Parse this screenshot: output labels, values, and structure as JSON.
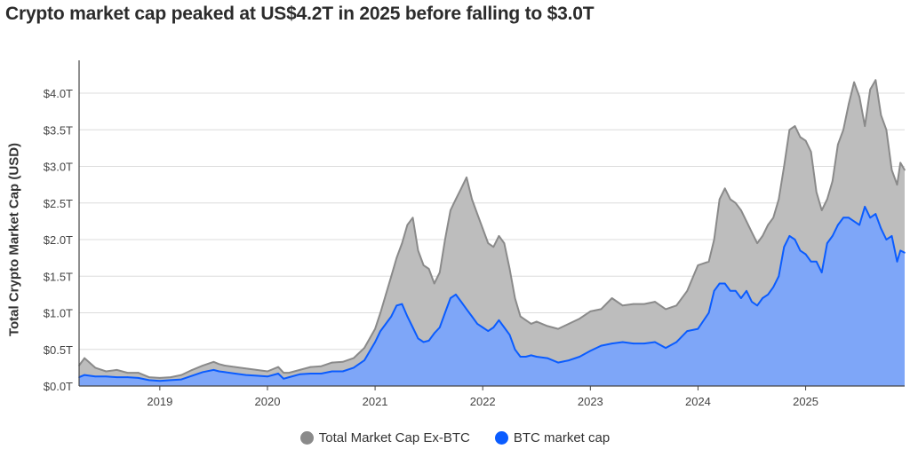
{
  "title": "Crypto market cap peaked at US$4.2T in 2025 before falling to $3.0T",
  "chart_data": {
    "type": "area",
    "title": "Crypto market cap peaked at US$4.2T in 2025 before falling to $3.0T",
    "xlabel": "",
    "ylabel": "Total Crypto Market Cap (USD)",
    "ylim": [
      0,
      4.4
    ],
    "xlim": [
      2018.25,
      2025.92
    ],
    "y_ticks": [
      {
        "value": 0,
        "label": "$0.0T"
      },
      {
        "value": 0.5,
        "label": "$0.5T"
      },
      {
        "value": 1.0,
        "label": "$1.0T"
      },
      {
        "value": 1.5,
        "label": "$1.5T"
      },
      {
        "value": 2.0,
        "label": "$2.0T"
      },
      {
        "value": 2.5,
        "label": "$2.5T"
      },
      {
        "value": 3.0,
        "label": "$3.0T"
      },
      {
        "value": 3.5,
        "label": "$3.5T"
      },
      {
        "value": 4.0,
        "label": "$4.0T"
      }
    ],
    "x_ticks": [
      {
        "value": 2019,
        "label": "2019"
      },
      {
        "value": 2020,
        "label": "2020"
      },
      {
        "value": 2021,
        "label": "2021"
      },
      {
        "value": 2022,
        "label": "2022"
      },
      {
        "value": 2023,
        "label": "2023"
      },
      {
        "value": 2024,
        "label": "2024"
      },
      {
        "value": 2025,
        "label": "2025"
      }
    ],
    "colors": {
      "total": "#8a8a8a",
      "total_fill": "#bdbdbd",
      "btc": "#0a5cff",
      "btc_fill": "#7ea6f8",
      "grid": "#dcdcdc",
      "axis": "#444444"
    },
    "series": [
      {
        "name": "Total Market Cap Ex-BTC",
        "role": "total",
        "x": [
          2018.25,
          2018.3,
          2018.4,
          2018.5,
          2018.6,
          2018.7,
          2018.8,
          2018.9,
          2019.0,
          2019.1,
          2019.2,
          2019.3,
          2019.4,
          2019.5,
          2019.55,
          2019.6,
          2019.7,
          2019.8,
          2019.9,
          2020.0,
          2020.1,
          2020.15,
          2020.2,
          2020.3,
          2020.4,
          2020.5,
          2020.6,
          2020.7,
          2020.8,
          2020.9,
          2021.0,
          2021.05,
          2021.1,
          2021.15,
          2021.2,
          2021.25,
          2021.3,
          2021.35,
          2021.4,
          2021.45,
          2021.5,
          2021.55,
          2021.6,
          2021.65,
          2021.7,
          2021.75,
          2021.8,
          2021.85,
          2021.9,
          2021.95,
          2022.0,
          2022.05,
          2022.1,
          2022.15,
          2022.2,
          2022.25,
          2022.3,
          2022.35,
          2022.4,
          2022.45,
          2022.5,
          2022.6,
          2022.7,
          2022.8,
          2022.9,
          2023.0,
          2023.1,
          2023.2,
          2023.3,
          2023.4,
          2023.5,
          2023.6,
          2023.7,
          2023.8,
          2023.9,
          2024.0,
          2024.1,
          2024.15,
          2024.2,
          2024.25,
          2024.3,
          2024.35,
          2024.4,
          2024.45,
          2024.5,
          2024.55,
          2024.6,
          2024.65,
          2024.7,
          2024.75,
          2024.8,
          2024.85,
          2024.9,
          2024.95,
          2025.0,
          2025.05,
          2025.1,
          2025.15,
          2025.2,
          2025.25,
          2025.3,
          2025.35,
          2025.4,
          2025.45,
          2025.5,
          2025.55,
          2025.6,
          2025.65,
          2025.7,
          2025.75,
          2025.8,
          2025.85,
          2025.88,
          2025.92
        ],
        "values": [
          0.28,
          0.38,
          0.25,
          0.2,
          0.22,
          0.18,
          0.18,
          0.12,
          0.11,
          0.12,
          0.15,
          0.22,
          0.28,
          0.33,
          0.3,
          0.28,
          0.26,
          0.24,
          0.22,
          0.2,
          0.26,
          0.18,
          0.18,
          0.22,
          0.26,
          0.27,
          0.32,
          0.33,
          0.38,
          0.52,
          0.78,
          1.0,
          1.25,
          1.5,
          1.75,
          1.95,
          2.2,
          2.3,
          1.85,
          1.65,
          1.6,
          1.4,
          1.55,
          2.0,
          2.4,
          2.55,
          2.7,
          2.85,
          2.55,
          2.35,
          2.15,
          1.95,
          1.9,
          2.05,
          1.95,
          1.6,
          1.2,
          0.95,
          0.9,
          0.85,
          0.88,
          0.82,
          0.78,
          0.85,
          0.92,
          1.02,
          1.05,
          1.2,
          1.1,
          1.12,
          1.12,
          1.15,
          1.05,
          1.1,
          1.3,
          1.65,
          1.7,
          2.0,
          2.55,
          2.7,
          2.55,
          2.5,
          2.4,
          2.25,
          2.1,
          1.95,
          2.05,
          2.2,
          2.3,
          2.55,
          3.0,
          3.5,
          3.55,
          3.4,
          3.35,
          3.2,
          2.65,
          2.4,
          2.55,
          2.8,
          3.3,
          3.5,
          3.85,
          4.15,
          3.95,
          3.55,
          4.05,
          4.18,
          3.7,
          3.5,
          2.95,
          2.75,
          3.05,
          2.95
        ]
      },
      {
        "name": "BTC market cap",
        "role": "btc",
        "x": [
          2018.25,
          2018.3,
          2018.4,
          2018.5,
          2018.6,
          2018.7,
          2018.8,
          2018.9,
          2019.0,
          2019.1,
          2019.2,
          2019.3,
          2019.4,
          2019.5,
          2019.55,
          2019.6,
          2019.7,
          2019.8,
          2019.9,
          2020.0,
          2020.1,
          2020.15,
          2020.2,
          2020.3,
          2020.4,
          2020.5,
          2020.6,
          2020.7,
          2020.8,
          2020.9,
          2021.0,
          2021.05,
          2021.1,
          2021.15,
          2021.2,
          2021.25,
          2021.3,
          2021.35,
          2021.4,
          2021.45,
          2021.5,
          2021.55,
          2021.6,
          2021.65,
          2021.7,
          2021.75,
          2021.8,
          2021.85,
          2021.9,
          2021.95,
          2022.0,
          2022.05,
          2022.1,
          2022.15,
          2022.2,
          2022.25,
          2022.3,
          2022.35,
          2022.4,
          2022.45,
          2022.5,
          2022.6,
          2022.7,
          2022.8,
          2022.9,
          2023.0,
          2023.1,
          2023.2,
          2023.3,
          2023.4,
          2023.5,
          2023.6,
          2023.7,
          2023.8,
          2023.9,
          2024.0,
          2024.1,
          2024.15,
          2024.2,
          2024.25,
          2024.3,
          2024.35,
          2024.4,
          2024.45,
          2024.5,
          2024.55,
          2024.6,
          2024.65,
          2024.7,
          2024.75,
          2024.8,
          2024.85,
          2024.9,
          2024.95,
          2025.0,
          2025.05,
          2025.1,
          2025.15,
          2025.2,
          2025.25,
          2025.3,
          2025.35,
          2025.4,
          2025.45,
          2025.5,
          2025.55,
          2025.6,
          2025.65,
          2025.7,
          2025.75,
          2025.8,
          2025.85,
          2025.88,
          2025.92
        ],
        "values": [
          0.12,
          0.15,
          0.13,
          0.13,
          0.12,
          0.12,
          0.11,
          0.08,
          0.07,
          0.08,
          0.09,
          0.14,
          0.19,
          0.22,
          0.2,
          0.19,
          0.17,
          0.15,
          0.14,
          0.13,
          0.17,
          0.1,
          0.12,
          0.16,
          0.17,
          0.17,
          0.2,
          0.2,
          0.25,
          0.35,
          0.6,
          0.75,
          0.85,
          0.95,
          1.1,
          1.12,
          0.95,
          0.8,
          0.65,
          0.6,
          0.62,
          0.72,
          0.8,
          1.0,
          1.2,
          1.25,
          1.15,
          1.05,
          0.95,
          0.85,
          0.8,
          0.75,
          0.8,
          0.9,
          0.8,
          0.7,
          0.5,
          0.4,
          0.4,
          0.42,
          0.4,
          0.38,
          0.32,
          0.35,
          0.4,
          0.48,
          0.55,
          0.58,
          0.6,
          0.58,
          0.58,
          0.6,
          0.52,
          0.6,
          0.75,
          0.78,
          1.0,
          1.3,
          1.4,
          1.4,
          1.3,
          1.3,
          1.2,
          1.3,
          1.15,
          1.1,
          1.2,
          1.25,
          1.35,
          1.5,
          1.9,
          2.05,
          2.0,
          1.85,
          1.8,
          1.7,
          1.7,
          1.55,
          1.95,
          2.05,
          2.2,
          2.3,
          2.3,
          2.25,
          2.2,
          2.45,
          2.3,
          2.35,
          2.15,
          2.0,
          2.05,
          1.7,
          1.85,
          1.82
        ]
      }
    ]
  },
  "legend": {
    "items": [
      {
        "label": "Total Market Cap Ex-BTC"
      },
      {
        "label": "BTC market cap"
      }
    ]
  }
}
